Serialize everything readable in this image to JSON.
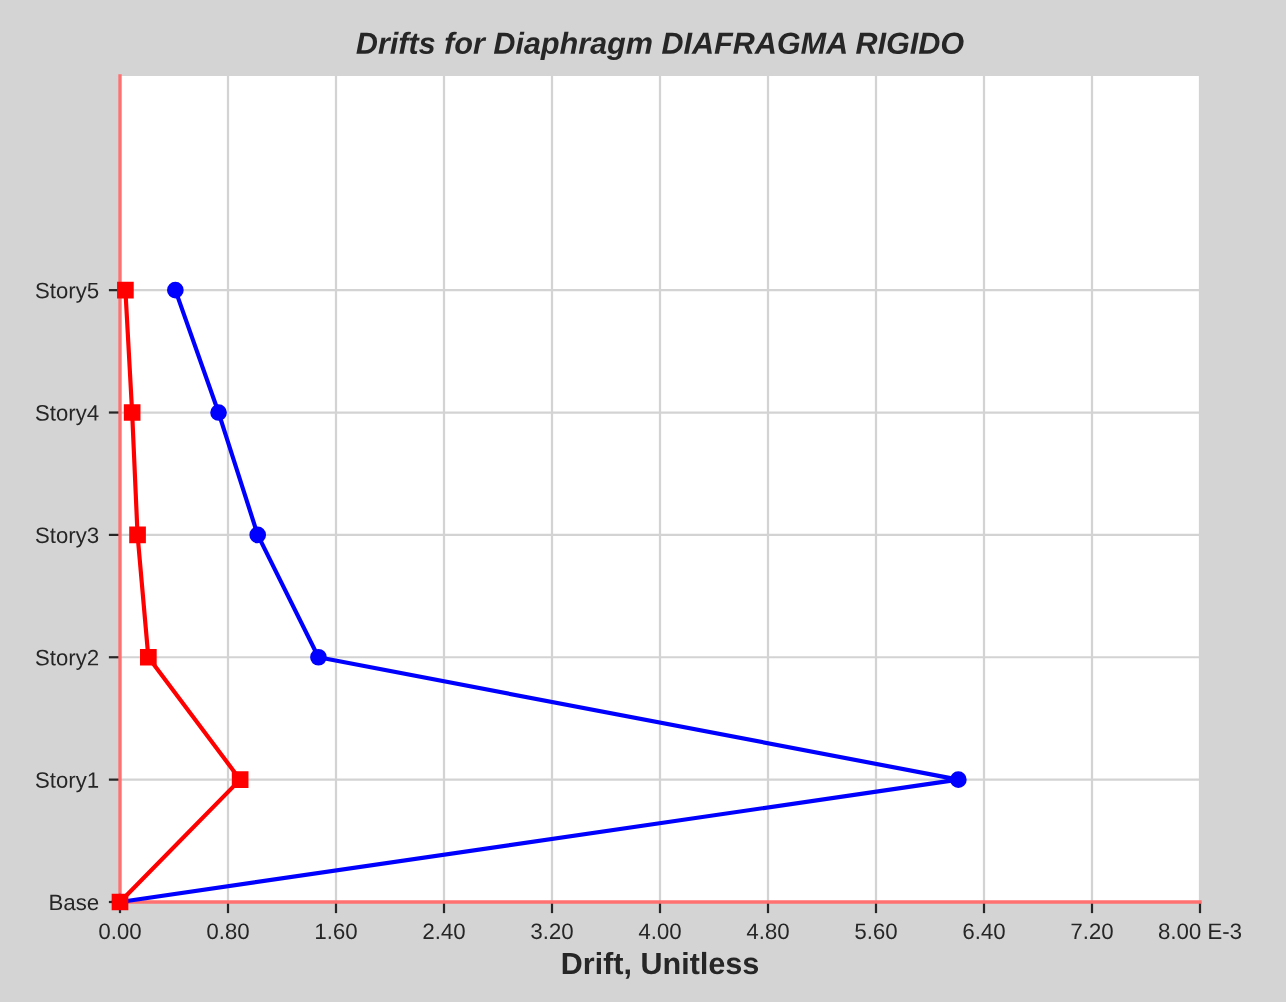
{
  "chart_data": {
    "type": "line",
    "title": "Drifts for Diaphragm DIAFRAGMA RIGIDO",
    "xlabel": "Drift, Unitless",
    "orientation": "horizontal",
    "categories": [
      "Story5",
      "Story4",
      "Story3",
      "Story2",
      "Story1",
      "Base"
    ],
    "series": [
      {
        "color": "#0000ff",
        "marker": "circle",
        "values": [
          0.41,
          0.73,
          1.02,
          1.47,
          6.21,
          0
        ]
      },
      {
        "color": "#ff0000",
        "marker": "square",
        "values": [
          0.04,
          0.09,
          0.13,
          0.21,
          0.89,
          0
        ]
      }
    ],
    "xlim": [
      0,
      8
    ],
    "xticks": [
      {
        "value": 0,
        "label": "0.00"
      },
      {
        "value": 0.8,
        "label": "0.80"
      },
      {
        "value": 1.6,
        "label": "1.60"
      },
      {
        "value": 2.4,
        "label": "2.40"
      },
      {
        "value": 3.2,
        "label": "3.20"
      },
      {
        "value": 4.0,
        "label": "4.00"
      },
      {
        "value": 4.8,
        "label": "4.80"
      },
      {
        "value": 5.6,
        "label": "5.60"
      },
      {
        "value": 6.4,
        "label": "6.40"
      },
      {
        "value": 7.2,
        "label": "7.20"
      },
      {
        "value": 8.0,
        "label": "8.00 E-3"
      }
    ],
    "grid": true,
    "line_style": "solid"
  }
}
